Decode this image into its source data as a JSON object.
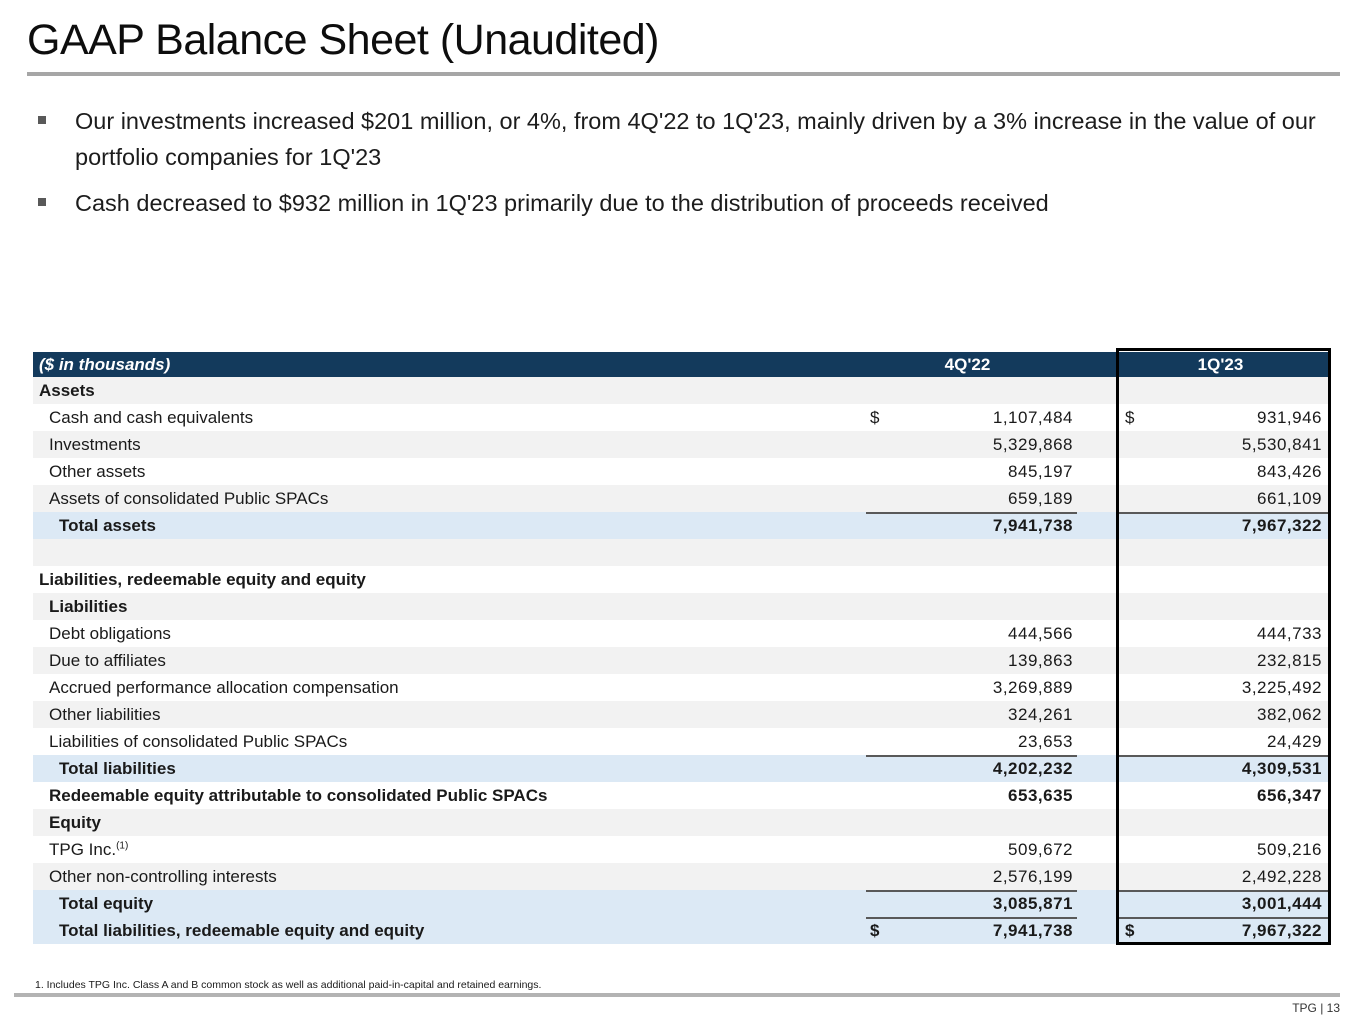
{
  "page": {
    "title": "GAAP Balance Sheet (Unaudited)",
    "footnote": "1. Includes TPG Inc. Class A and B common stock as well as additional paid-in-capital and retained earnings.",
    "page_label": "TPG | 13"
  },
  "bullets": [
    {
      "text": "Our investments increased $201 million, or 4%, from 4Q'22 to 1Q'23, mainly driven by a 3% increase in the value of our portfolio companies for 1Q'23"
    },
    {
      "text": "Cash decreased to $932 million in 1Q'23 primarily due to the distribution of proceeds received"
    }
  ],
  "table": {
    "header": {
      "label": "($ in thousands)",
      "col_4q22": "4Q'22",
      "col_1q23": "1Q'23"
    },
    "rows": [
      {
        "label": "Assets",
        "ind": 1,
        "bold": true,
        "bg": "g"
      },
      {
        "label": "Cash and cash equivalents",
        "ind": 2,
        "bg": "w",
        "d4": "$",
        "v4": "1,107,484",
        "d1": "$",
        "v1": "931,946"
      },
      {
        "label": "Investments",
        "ind": 2,
        "bg": "g",
        "v4": "5,329,868",
        "v1": "5,530,841"
      },
      {
        "label": "Other assets",
        "ind": 2,
        "bg": "w",
        "v4": "845,197",
        "v1": "843,426"
      },
      {
        "label": "Assets of consolidated Public SPACs",
        "ind": 2,
        "bg": "g",
        "v4": "659,189",
        "v1": "661,109"
      },
      {
        "label": "Total assets",
        "ind": 3,
        "bold": true,
        "bg": "b",
        "v4": "7,941,738",
        "v1": "7,967,322",
        "line": true
      },
      {
        "label": "",
        "ind": 1,
        "bg": "g"
      },
      {
        "label": "Liabilities, redeemable equity and equity",
        "ind": 1,
        "bold": true,
        "bg": "w"
      },
      {
        "label": "Liabilities",
        "ind": 2,
        "bold": true,
        "bg": "g"
      },
      {
        "label": "Debt obligations",
        "ind": 2,
        "bg": "w",
        "v4": "444,566",
        "v1": "444,733"
      },
      {
        "label": "Due to affiliates",
        "ind": 2,
        "bg": "g",
        "v4": "139,863",
        "v1": "232,815"
      },
      {
        "label": "Accrued performance allocation compensation",
        "ind": 2,
        "bg": "w",
        "v4": "3,269,889",
        "v1": "3,225,492"
      },
      {
        "label": "Other liabilities",
        "ind": 2,
        "bg": "g",
        "v4": "324,261",
        "v1": "382,062"
      },
      {
        "label": "Liabilities of consolidated Public SPACs",
        "ind": 2,
        "bg": "w",
        "v4": "23,653",
        "v1": "24,429"
      },
      {
        "label": "Total liabilities",
        "ind": 3,
        "bold": true,
        "bg": "b",
        "v4": "4,202,232",
        "v1": "4,309,531",
        "line": true
      },
      {
        "label": "Redeemable equity attributable to consolidated Public SPACs",
        "ind": 2,
        "bold": true,
        "bg": "w",
        "v4": "653,635",
        "v1": "656,347"
      },
      {
        "label": "Equity",
        "ind": 2,
        "bold": true,
        "bg": "g"
      },
      {
        "label": "TPG Inc.",
        "sup": "(1)",
        "ind": 2,
        "bg": "w",
        "v4": "509,672",
        "v1": "509,216"
      },
      {
        "label": "Other non-controlling interests",
        "ind": 2,
        "bg": "g",
        "v4": "2,576,199",
        "v1": "2,492,228"
      },
      {
        "label": "Total equity",
        "ind": 3,
        "bold": true,
        "bg": "b",
        "v4": "3,085,871",
        "v1": "3,001,444",
        "line": true
      },
      {
        "label": "Total liabilities, redeemable equity and equity",
        "ind": 3,
        "bold": true,
        "bg": "b",
        "d4": "$",
        "v4": "7,941,738",
        "d1": "$",
        "v1": "7,967,322",
        "line": true
      }
    ]
  },
  "colors": {
    "header_bg": "#133a5c",
    "row_gray": "#f2f2f2",
    "row_blue": "#dce9f5",
    "rule_gray": "#a6a6a6",
    "sum_line": "#595959",
    "box_black": "#000000"
  }
}
